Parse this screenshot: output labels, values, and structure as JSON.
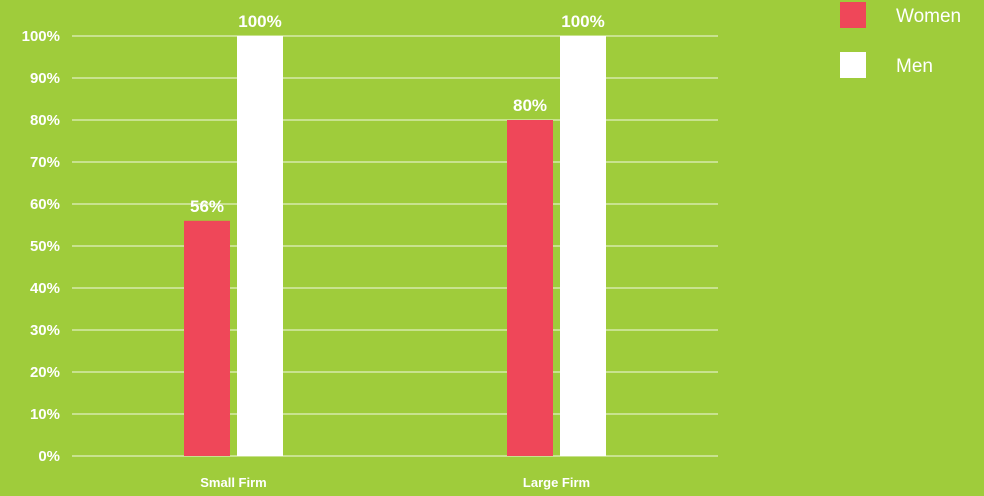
{
  "chart_data": {
    "type": "bar",
    "categories": [
      "Small Firm",
      "Large Firm"
    ],
    "series": [
      {
        "name": "Women",
        "color": "#EF4759",
        "values": [
          56,
          80
        ],
        "labels": [
          "56%",
          "80%"
        ]
      },
      {
        "name": "Men",
        "color": "#FFFFFF",
        "values": [
          100,
          100
        ],
        "labels": [
          "100%",
          "100%"
        ]
      }
    ],
    "yticks": [
      "0%",
      "10%",
      "20%",
      "30%",
      "40%",
      "50%",
      "60%",
      "70%",
      "80%",
      "90%",
      "100%"
    ],
    "ylim": [
      0,
      100
    ],
    "grid": true,
    "legend_position": "top-right",
    "background": "#9FCC3B"
  }
}
